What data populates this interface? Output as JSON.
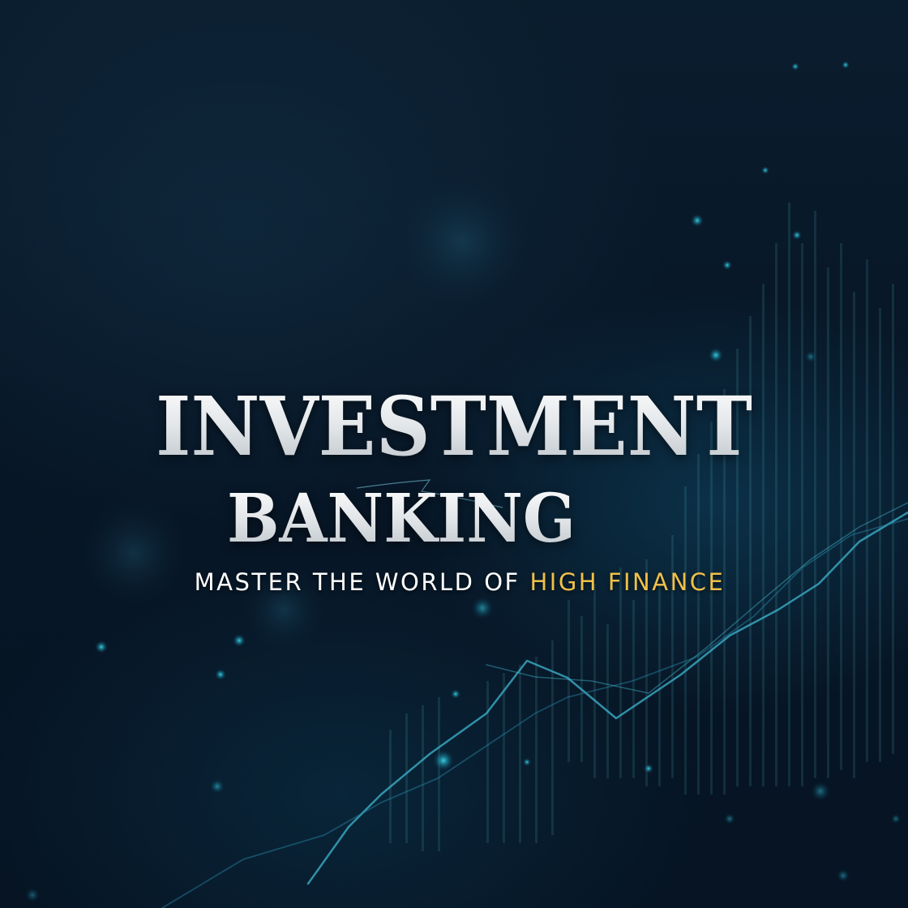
{
  "headline": {
    "line1": "INVESTMENT",
    "line2": "BANKING"
  },
  "tagline": {
    "lead": "MASTER THE WORLD OF ",
    "highlight": "HIGH FINANCE"
  },
  "colors": {
    "background": "#06121f",
    "glow": "#2ec4d6",
    "headline": "#e8ecef",
    "accent": "#efc04a"
  }
}
